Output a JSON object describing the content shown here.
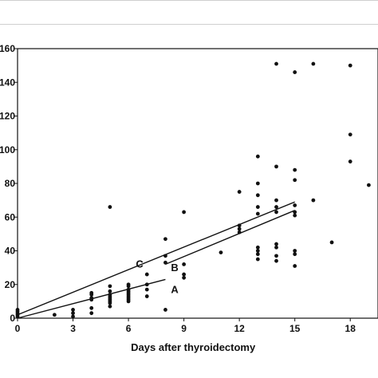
{
  "chart_data": {
    "type": "scatter",
    "title": "",
    "xlabel": "Days after thyroidectomy",
    "ylabel": "",
    "xlim": [
      0,
      19.5
    ],
    "ylim": [
      0,
      160
    ],
    "x_ticks": [
      0,
      3,
      6,
      9,
      12,
      15,
      18
    ],
    "x_tick_labels": [
      "0",
      "3",
      "6",
      "9",
      "12",
      "15",
      "18"
    ],
    "y_ticks": [
      0,
      20,
      40,
      60,
      80,
      100,
      120,
      140,
      160
    ],
    "y_tick_labels": [
      "0",
      "20",
      "40",
      "60",
      "80",
      "100",
      "120",
      "140",
      "160"
    ],
    "grid": false,
    "point_color": "#111111",
    "series": [
      {
        "values": [
          [
            0,
            1
          ],
          [
            0,
            2
          ],
          [
            0,
            3
          ],
          [
            0,
            4
          ],
          [
            0,
            5
          ],
          [
            2,
            2
          ],
          [
            3,
            1
          ],
          [
            3,
            3
          ],
          [
            3,
            5
          ],
          [
            4,
            3
          ],
          [
            4,
            6
          ],
          [
            4,
            11
          ],
          [
            4,
            12
          ],
          [
            4,
            14
          ],
          [
            4,
            15
          ],
          [
            5,
            7
          ],
          [
            5,
            9
          ],
          [
            5,
            10
          ],
          [
            5,
            11
          ],
          [
            5,
            12
          ],
          [
            5,
            13
          ],
          [
            5,
            14
          ],
          [
            5,
            16
          ],
          [
            5,
            19
          ],
          [
            5,
            66
          ],
          [
            6,
            10
          ],
          [
            6,
            11
          ],
          [
            6,
            12
          ],
          [
            6,
            13
          ],
          [
            6,
            14
          ],
          [
            6,
            15
          ],
          [
            6,
            16
          ],
          [
            6,
            17
          ],
          [
            6,
            19
          ],
          [
            6,
            20
          ],
          [
            7,
            13
          ],
          [
            7,
            17
          ],
          [
            7,
            20
          ],
          [
            7,
            26
          ],
          [
            8,
            5
          ],
          [
            8,
            33
          ],
          [
            8,
            37
          ],
          [
            8,
            47
          ],
          [
            9,
            24
          ],
          [
            9,
            26
          ],
          [
            9,
            32
          ],
          [
            9,
            63
          ],
          [
            11,
            39
          ],
          [
            12,
            51
          ],
          [
            12,
            53
          ],
          [
            12,
            55
          ],
          [
            12,
            75
          ],
          [
            13,
            35
          ],
          [
            13,
            38
          ],
          [
            13,
            40
          ],
          [
            13,
            42
          ],
          [
            13,
            62
          ],
          [
            13,
            66
          ],
          [
            13,
            73
          ],
          [
            13,
            80
          ],
          [
            13,
            96
          ],
          [
            14,
            34
          ],
          [
            14,
            37
          ],
          [
            14,
            42
          ],
          [
            14,
            44
          ],
          [
            14,
            63
          ],
          [
            14,
            66
          ],
          [
            14,
            70
          ],
          [
            14,
            90
          ],
          [
            14,
            151
          ],
          [
            15,
            31
          ],
          [
            15,
            38
          ],
          [
            15,
            40
          ],
          [
            15,
            61
          ],
          [
            15,
            63
          ],
          [
            15,
            67
          ],
          [
            15,
            82
          ],
          [
            15,
            88
          ],
          [
            15,
            146
          ],
          [
            16,
            70
          ],
          [
            16,
            151
          ],
          [
            17,
            45
          ],
          [
            18,
            93
          ],
          [
            18,
            109
          ],
          [
            18,
            150
          ],
          [
            19,
            79
          ]
        ]
      }
    ],
    "lines": [
      {
        "label": "A",
        "x": [
          0,
          8
        ],
        "y": [
          0,
          23
        ]
      },
      {
        "label": "B",
        "x": [
          8,
          15
        ],
        "y": [
          32,
          64
        ]
      },
      {
        "label": "C",
        "x": [
          0,
          15
        ],
        "y": [
          2,
          69
        ]
      }
    ],
    "annotations": [
      {
        "text": "A",
        "x": 8.3,
        "y": 15
      },
      {
        "text": "B",
        "x": 8.3,
        "y": 28
      },
      {
        "text": "C",
        "x": 6.4,
        "y": 30
      }
    ]
  }
}
